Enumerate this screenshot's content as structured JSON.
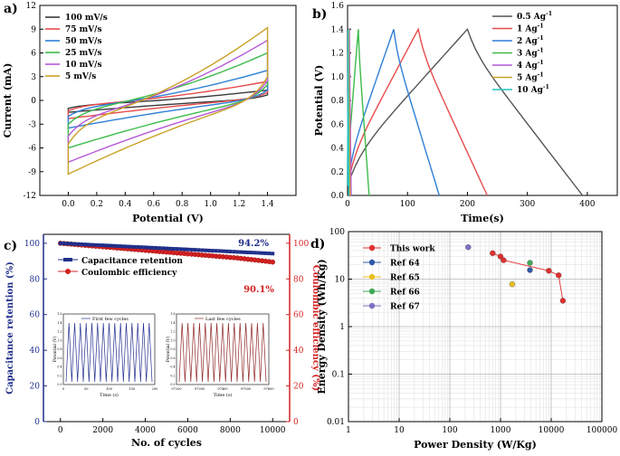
{
  "chart_data": [
    {
      "panel": "a)",
      "type": "line",
      "title": "",
      "xlabel": "Potential (V)",
      "ylabel": "Current (mA)",
      "xlim": [
        -0.2,
        1.6
      ],
      "ylim": [
        -12,
        12
      ],
      "xticks": [
        "0.0",
        "0.2",
        "0.4",
        "0.6",
        "0.8",
        "1.0",
        "1.2",
        "1.4"
      ],
      "yticks": [
        "-12",
        "-9",
        "-6",
        "-3",
        "0",
        "3",
        "6",
        "9",
        "12"
      ],
      "legend": "top-left",
      "series": [
        {
          "name": "100 mV/s",
          "color": "#3a3a3a",
          "top_start": -1.0,
          "top_end": 1.3,
          "bottom_start": -1.5,
          "bottom_end": 0.7
        },
        {
          "name": "75 mV/s",
          "color": "#e74c4c",
          "top_start": -1.3,
          "top_end": 2.4,
          "bottom_start": -2.3,
          "bottom_end": 1.0
        },
        {
          "name": "50 mV/s",
          "color": "#2e7fd6",
          "top_start": -2.0,
          "top_end": 3.8,
          "bottom_start": -3.5,
          "bottom_end": 1.3
        },
        {
          "name": "25 mV/s",
          "color": "#3dbb4a",
          "top_start": -3.0,
          "top_end": 6.0,
          "bottom_start": -6.0,
          "bottom_end": 2.0
        },
        {
          "name": "10 mV/s",
          "color": "#b65ad6",
          "top_start": -4.5,
          "top_end": 7.6,
          "bottom_start": -7.8,
          "bottom_end": 2.5
        },
        {
          "name": "5 mV/s",
          "color": "#c9a227",
          "top_start": -5.5,
          "top_end": 9.2,
          "bottom_start": -9.3,
          "bottom_end": 3.0
        }
      ]
    },
    {
      "panel": "b)",
      "type": "line",
      "title": "",
      "xlabel": "Time(s)",
      "ylabel": "Potential (V)",
      "xlim": [
        0,
        450
      ],
      "ylim": [
        0,
        1.6
      ],
      "xticks": [
        "0",
        "100",
        "200",
        "300",
        "400"
      ],
      "yticks": [
        "0.0",
        "0.2",
        "0.4",
        "0.6",
        "0.8",
        "1.0",
        "1.2",
        "1.4",
        "1.6"
      ],
      "legend": "top-right",
      "series": [
        {
          "name": "0.5 Ag-1",
          "color": "#555555",
          "peak_time": 200,
          "end_time": 392,
          "peak_v": 1.4
        },
        {
          "name": "1 Ag-1",
          "color": "#e74c4c",
          "peak_time": 118,
          "end_time": 233,
          "peak_v": 1.4
        },
        {
          "name": "2 Ag-1",
          "color": "#2e7fd6",
          "peak_time": 77,
          "end_time": 153,
          "peak_v": 1.4
        },
        {
          "name": "3 Ag-1",
          "color": "#3dbb4a",
          "peak_time": 18,
          "end_time": 36,
          "peak_v": 1.4
        },
        {
          "name": "4 Ag-1",
          "color": "#b65ad6",
          "peak_time": 3,
          "end_time": 6,
          "peak_v": 1.4
        },
        {
          "name": "5 Ag-1",
          "color": "#c9a227",
          "peak_time": 2,
          "end_time": 4,
          "peak_v": 1.4
        },
        {
          "name": "10 Ag-1",
          "color": "#27c4c4",
          "peak_time": 1,
          "end_time": 2,
          "peak_v": 1.4
        }
      ]
    },
    {
      "panel": "c)",
      "type": "scatter",
      "xlabel": "No. of cycles",
      "ylabel_left": "Capacitance retention (%)",
      "ylabel_right": "Coulombic efficiency (%)",
      "xlim": [
        -800,
        10800
      ],
      "ylim": [
        0,
        105
      ],
      "xticks": [
        "0",
        "2000",
        "4000",
        "6000",
        "8000",
        "10000"
      ],
      "yticks_left": [
        "0",
        "20",
        "40",
        "60",
        "80",
        "100"
      ],
      "yticks_right": [
        "0",
        "20",
        "40",
        "60",
        "80",
        "100"
      ],
      "legend": "top-left",
      "series": [
        {
          "name": "Capacitance retention",
          "color": "#1f2f8a",
          "start": 100,
          "end": 94.2
        },
        {
          "name": "Coulombic efficiency",
          "color": "#d42222",
          "start": 100,
          "end": 90.1
        }
      ],
      "annotations": [
        "94.2%",
        "90.1%"
      ],
      "insets": [
        {
          "title": "First few cycles",
          "xlabel": "Time (s)",
          "ylabel": "Potential (V)",
          "xticks": [
            "0",
            "50",
            "100",
            "150",
            "200"
          ],
          "yticks": [
            "0.0",
            "0.2",
            "0.4",
            "0.6",
            "0.8",
            "1.0",
            "1.2",
            "1.4",
            "1.6"
          ],
          "color": "#26308f"
        },
        {
          "title": "Last few cycles",
          "xlabel": "Time (s)",
          "ylabel": "Potential (V)",
          "xticks": [
            "97200",
            "97300",
            "97400",
            "97500",
            "97600"
          ],
          "yticks": [
            "0.0",
            "0.2",
            "0.4",
            "0.6",
            "0.8",
            "1.0",
            "1.2",
            "1.4",
            "1.6"
          ],
          "color": "#8f2626"
        }
      ]
    },
    {
      "panel": "d)",
      "type": "scatter",
      "xlabel": "Power Density (W/Kg)",
      "ylabel": "Energy Density (Wh/Kg)",
      "xscale": "log",
      "yscale": "log",
      "xlim": [
        1,
        100000
      ],
      "ylim": [
        0.01,
        100
      ],
      "xticks": [
        "1",
        "10",
        "100",
        "1000",
        "10000",
        "100000"
      ],
      "yticks": [
        "0.01",
        "0.1",
        "1",
        "10",
        "100"
      ],
      "legend": "top-left",
      "series": [
        {
          "name": "This work",
          "color": "#e03030",
          "points": [
            [
              700,
              35
            ],
            [
              1000,
              30
            ],
            [
              1150,
              25
            ],
            [
              9000,
              15
            ],
            [
              14000,
              12
            ],
            [
              17000,
              3.5
            ]
          ]
        },
        {
          "name": "Ref 64",
          "color": "#2d5aa8",
          "points": [
            [
              3800,
              15.5
            ]
          ]
        },
        {
          "name": "Ref 65",
          "color": "#e8c020",
          "points": [
            [
              1700,
              7.8
            ]
          ]
        },
        {
          "name": "Ref 66",
          "color": "#3fa858",
          "points": [
            [
              3800,
              22
            ]
          ]
        },
        {
          "name": "Ref 67",
          "color": "#7c72c4",
          "points": [
            [
              230,
              47
            ]
          ]
        }
      ]
    }
  ]
}
